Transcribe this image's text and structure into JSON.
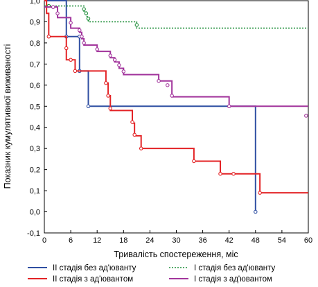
{
  "chart_data": {
    "type": "line",
    "step": true,
    "xlabel": "Тривалість спостереження, міс",
    "ylabel": "Показник кумулятивної виживаності",
    "xlim": [
      0,
      60
    ],
    "ylim": [
      -0.1,
      1.0
    ],
    "xticks": [
      "0",
      "6",
      "12",
      "18",
      "24",
      "30",
      "36",
      "42",
      "48",
      "54",
      "60"
    ],
    "yticks": [
      "1,0",
      "0,9",
      "0,8",
      "0,7",
      "0,6",
      "0,5",
      "0,4",
      "0,3",
      "0,2",
      "0,1",
      "0,0",
      "-0,1"
    ],
    "grid": false,
    "legend_position": "bottom",
    "series": [
      {
        "name": "II стадія без ад'юванту",
        "color": "#2f4fa2",
        "style": "solid",
        "x": [
          0,
          5,
          8,
          10,
          48
        ],
        "y": [
          1.0,
          0.83,
          0.667,
          0.5,
          0.0
        ],
        "end_x": 48,
        "markers": [
          [
            5,
            0.83
          ],
          [
            8,
            0.83
          ],
          [
            8,
            0.667
          ],
          [
            10,
            0.5
          ],
          [
            48,
            0.0
          ]
        ]
      },
      {
        "name": "II стадія з ад'ювантом",
        "color": "#e32326",
        "style": "solid",
        "x": [
          0,
          0.5,
          1,
          5,
          6,
          7,
          14,
          14.5,
          15,
          20,
          20.5,
          22,
          34,
          40,
          49
        ],
        "y": [
          1.0,
          0.94,
          0.83,
          0.72,
          0.72,
          0.667,
          0.61,
          0.55,
          0.48,
          0.42,
          0.36,
          0.3,
          0.24,
          0.18,
          0.09
        ],
        "end_x": 60,
        "markers": [
          [
            1,
            0.83
          ],
          [
            5,
            0.775
          ],
          [
            6,
            0.72
          ],
          [
            7,
            0.667
          ],
          [
            14,
            0.61
          ],
          [
            14.5,
            0.55
          ],
          [
            15,
            0.49
          ],
          [
            20,
            0.425
          ],
          [
            20.5,
            0.365
          ],
          [
            22,
            0.3
          ],
          [
            34,
            0.24
          ],
          [
            40,
            0.18
          ],
          [
            43,
            0.18
          ],
          [
            49,
            0.09
          ]
        ]
      },
      {
        "name": "I стадія без ад'юванту",
        "color": "#1f8f3a",
        "style": "dotted",
        "x": [
          0,
          9,
          9.5,
          10,
          21
        ],
        "y": [
          0.975,
          0.95,
          0.925,
          0.9,
          0.87
        ],
        "end_x": 60,
        "markers": [
          [
            1,
            0.975
          ],
          [
            9,
            0.96
          ],
          [
            9.5,
            0.94
          ],
          [
            10,
            0.915
          ],
          [
            21,
            0.885
          ]
        ]
      },
      {
        "name": "I стадія з ад'ювантом",
        "color": "#a2359c",
        "style": "solid",
        "x": [
          0,
          3,
          6,
          8,
          8.5,
          9,
          12,
          15,
          16,
          17,
          18,
          26,
          29,
          42
        ],
        "y": [
          0.97,
          0.92,
          0.87,
          0.85,
          0.82,
          0.79,
          0.76,
          0.73,
          0.71,
          0.68,
          0.65,
          0.62,
          0.545,
          0.5
        ],
        "end_x": 60,
        "markers": [
          [
            2,
            0.97
          ],
          [
            3,
            0.94
          ],
          [
            6,
            0.895
          ],
          [
            8,
            0.86
          ],
          [
            8.5,
            0.83
          ],
          [
            9,
            0.8
          ],
          [
            12,
            0.77
          ],
          [
            15,
            0.74
          ],
          [
            16,
            0.72
          ],
          [
            17,
            0.695
          ],
          [
            18,
            0.665
          ],
          [
            26,
            0.62
          ],
          [
            28,
            0.6
          ],
          [
            29,
            0.55
          ],
          [
            42,
            0.5
          ],
          [
            59.5,
            0.455
          ]
        ]
      }
    ]
  }
}
